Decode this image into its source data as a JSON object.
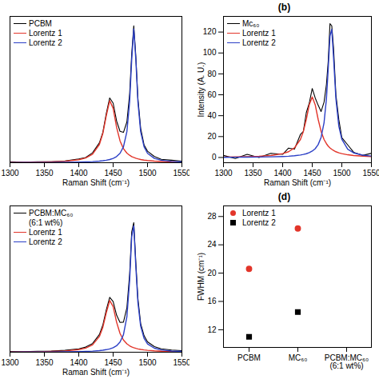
{
  "chart_data": [
    {
      "type": "line",
      "x_label": "Raman Shift (cm⁻¹)",
      "x": [
        1300,
        1320,
        1340,
        1360,
        1380,
        1400,
        1410,
        1420,
        1430,
        1435,
        1440,
        1445,
        1450,
        1455,
        1460,
        1465,
        1470,
        1474,
        1477,
        1480,
        1483,
        1486,
        1490,
        1495,
        1500,
        1510,
        1520,
        1535,
        1550
      ],
      "series": [
        {
          "name": "PCBM",
          "color": "#000000",
          "line_style": "solid",
          "values": [
            1.0,
            0.5,
            0.9,
            1.0,
            1.6,
            3.6,
            5.0,
            9.5,
            19,
            29,
            47,
            62,
            57,
            40,
            30,
            29,
            39,
            66,
            104,
            131,
            102,
            62,
            33,
            17,
            11,
            5.9,
            3.3,
            2.4,
            1.5
          ]
        },
        {
          "name": "Lorentz 1",
          "color": "#e2352a",
          "line_style": "solid",
          "values": [
            0.29,
            0.39,
            0.56,
            0.84,
            1.41,
            2.83,
            4.5,
            8.1,
            17.4,
            27.9,
            44.8,
            59.4,
            52.1,
            33.9,
            20.9,
            13.5,
            9.2,
            7.1,
            5.9,
            5.0,
            4.3,
            3.7,
            3.1,
            2.5,
            2.1,
            1.5,
            1.13,
            0.79,
            0.58
          ]
        },
        {
          "name": "Lorentz 2",
          "color": "#2b3fc6",
          "line_style": "solid",
          "values": [
            0.12,
            0.15,
            0.2,
            0.27,
            0.39,
            0.6,
            0.79,
            1.07,
            1.53,
            1.89,
            2.38,
            3.08,
            4.16,
            5.9,
            9.0,
            15.2,
            29.7,
            58.4,
            98.5,
            128,
            98.5,
            58.4,
            29.7,
            15.2,
            9.0,
            4.16,
            2.38,
            1.27,
            0.79
          ]
        }
      ],
      "xlim": [
        1300,
        1550
      ],
      "xticks": [
        1300,
        1350,
        1400,
        1450,
        1500,
        1550
      ],
      "ylim": [
        0,
        140
      ],
      "tick_labels": "x",
      "legend": "top-left"
    },
    {
      "type": "line",
      "title": "(b)",
      "x_label": "Raman Shift (cm⁻¹)",
      "y_label": "Intensity (A. U.)",
      "x": [
        1300,
        1320,
        1340,
        1360,
        1380,
        1400,
        1410,
        1420,
        1430,
        1435,
        1440,
        1445,
        1450,
        1455,
        1460,
        1465,
        1470,
        1474,
        1477,
        1480,
        1483,
        1486,
        1490,
        1495,
        1500,
        1510,
        1520,
        1535,
        1550
      ],
      "series": [
        {
          "name": "Mc₆₀",
          "color": "#000000",
          "line_style": "solid",
          "values": [
            2,
            -1,
            3,
            0,
            4,
            3,
            9,
            8,
            22,
            25,
            43,
            52,
            66,
            57,
            50,
            44,
            53,
            70,
            92,
            128,
            126,
            105,
            60,
            36,
            19,
            12,
            5,
            2,
            4
          ]
        },
        {
          "name": "Lorentz 1",
          "color": "#e2352a",
          "line_style": "solid",
          "values": [
            0.43,
            0.57,
            0.8,
            1.18,
            1.93,
            3.67,
            5.5,
            9.2,
            17.2,
            24.9,
            36.5,
            50.5,
            58,
            50.5,
            36.5,
            24.9,
            17.2,
            13.2,
            10.9,
            9.2,
            7.8,
            6.7,
            5.5,
            4.5,
            3.67,
            2.6,
            1.93,
            1.33,
            0.96
          ]
        },
        {
          "name": "Lorentz 2",
          "color": "#2b3fc6",
          "line_style": "solid",
          "values": [
            0.2,
            0.25,
            0.33,
            0.44,
            0.63,
            0.97,
            1.25,
            1.69,
            2.38,
            2.91,
            3.62,
            4.63,
            6.1,
            8.4,
            12.3,
            19.3,
            33.4,
            56.3,
            84.7,
            116.2,
            122.7,
            95.9,
            56.3,
            29.7,
            17.5,
            7.9,
            4.4,
            2.3,
            1.4
          ]
        }
      ],
      "xlim": [
        1300,
        1550
      ],
      "xticks": [
        1300,
        1350,
        1400,
        1450,
        1500,
        1550
      ],
      "ylim": [
        -5,
        135
      ],
      "yticks": [
        0,
        20,
        40,
        60,
        80,
        100,
        120
      ],
      "legend": "top-left"
    },
    {
      "type": "line",
      "x_label": "Raman Shift (cm⁻¹)",
      "x": [
        1300,
        1320,
        1340,
        1360,
        1380,
        1400,
        1410,
        1420,
        1430,
        1435,
        1440,
        1445,
        1450,
        1455,
        1460,
        1465,
        1470,
        1474,
        1477,
        1480,
        1483,
        1486,
        1490,
        1495,
        1500,
        1510,
        1520,
        1535,
        1550
      ],
      "series": [
        {
          "name": "PCBM:MC₆₀ (6:1 wt%)",
          "color": "#000000",
          "line_style": "solid",
          "values": [
            0.8,
            0.6,
            0.9,
            1.2,
            1.8,
            3.3,
            4.9,
            8.3,
            16.9,
            26,
            40.5,
            52.5,
            48.5,
            35.5,
            28.5,
            28.8,
            42.5,
            75,
            115,
            124,
            86,
            51.5,
            27.5,
            15.8,
            10,
            5.3,
            3.3,
            2.1,
            1.5
          ]
        },
        {
          "name": "Lorentz 1",
          "color": "#e2352a",
          "line_style": "solid",
          "values": [
            0.26,
            0.35,
            0.49,
            0.73,
            1.23,
            2.47,
            3.9,
            7.0,
            15.0,
            23.8,
            37.7,
            49.5,
            43.7,
            28.8,
            18.0,
            11.7,
            8.0,
            6.1,
            5.1,
            4.35,
            3.7,
            3.2,
            2.7,
            2.2,
            1.8,
            1.3,
            0.98,
            0.68,
            0.5
          ]
        },
        {
          "name": "Lorentz 2",
          "color": "#2b3fc6",
          "line_style": "solid",
          "values": [
            0.12,
            0.15,
            0.2,
            0.27,
            0.38,
            0.6,
            0.79,
            1.08,
            1.55,
            1.92,
            2.44,
            3.19,
            4.34,
            6.2,
            9.7,
            16.7,
            34,
            68.5,
            110.4,
            121,
            81.7,
            47.7,
            25,
            13.2,
            8.0,
            3.8,
            2.2,
            1.2,
            0.74
          ]
        }
      ],
      "xlim": [
        1300,
        1550
      ],
      "xticks": [
        1300,
        1350,
        1400,
        1450,
        1500,
        1550
      ],
      "ylim": [
        0,
        140
      ],
      "tick_labels": "x",
      "legend": "top-left"
    },
    {
      "type": "scatter",
      "title": "(d)",
      "y_label": "FWHM (cm⁻¹)",
      "categories": [
        "PCBM",
        "MC₆₀",
        "PCBM:MC₆₀ (6:1 wt%)"
      ],
      "series": [
        {
          "name": "Lorentz 1",
          "color": "#e2352a",
          "marker": "circle",
          "values": [
            20.6,
            26.3,
            null
          ]
        },
        {
          "name": "Lorentz 2",
          "color": "#000000",
          "marker": "square",
          "values": [
            11.0,
            14.5,
            null
          ]
        }
      ],
      "ylim": [
        9.5,
        29.5
      ],
      "yticks": [
        12,
        16,
        20,
        24,
        28
      ],
      "legend": "top-left"
    }
  ]
}
